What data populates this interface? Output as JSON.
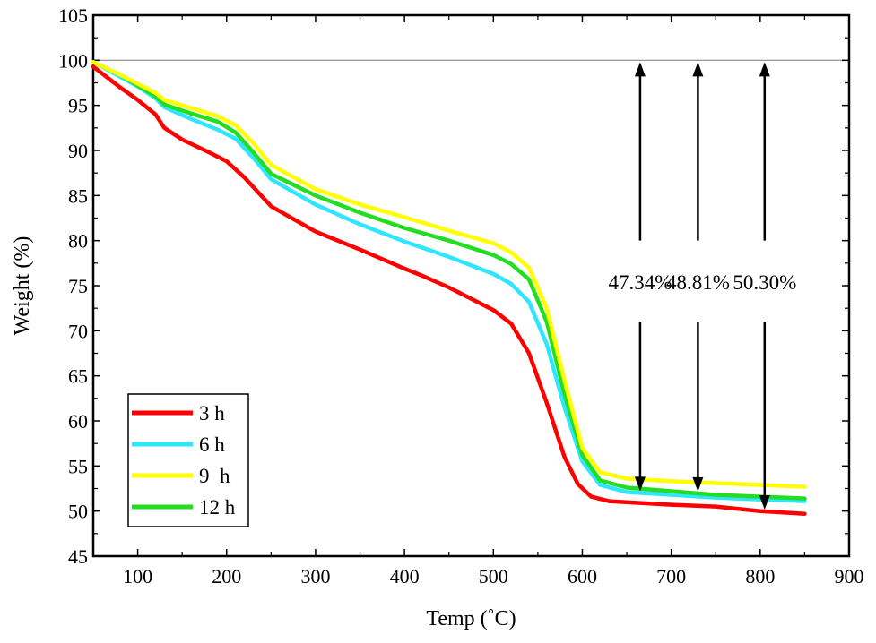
{
  "chart_data": {
    "type": "line",
    "title": "",
    "xlabel": "Temp (˚C)",
    "ylabel": "Weight (%)",
    "xlim": [
      50,
      900
    ],
    "ylim": [
      45,
      105
    ],
    "xticks": [
      100,
      200,
      300,
      400,
      500,
      600,
      700,
      800,
      900
    ],
    "yticks": [
      45,
      50,
      55,
      60,
      65,
      70,
      75,
      80,
      85,
      90,
      95,
      100,
      105
    ],
    "xtick_labels": [
      "100",
      "200",
      "300",
      "400",
      "500",
      "600",
      "700",
      "800",
      "900"
    ],
    "ytick_labels": [
      "45",
      "50",
      "55",
      "60",
      "65",
      "70",
      "75",
      "80",
      "85",
      "90",
      "95",
      "100",
      "105"
    ],
    "reference_line": {
      "y": 100,
      "color": "#888888"
    },
    "legend": {
      "placement": "bottom-left"
    },
    "series": [
      {
        "name": "3 h",
        "color": "#ff0000",
        "x": [
          50,
          80,
          100,
          120,
          130,
          150,
          180,
          200,
          220,
          250,
          300,
          350,
          400,
          420,
          450,
          500,
          520,
          540,
          560,
          580,
          595,
          610,
          630,
          700,
          750,
          800,
          850
        ],
        "y": [
          99.3,
          97,
          95.6,
          94,
          92.5,
          91.2,
          89.8,
          88.8,
          87,
          83.8,
          81,
          79,
          76.9,
          76.1,
          74.8,
          72.3,
          70.8,
          67.5,
          62,
          56,
          53,
          51.6,
          51.1,
          50.7,
          50.5,
          50,
          49.7
        ]
      },
      {
        "name": "6 h",
        "color": "#2ee6ff",
        "x": [
          50,
          80,
          100,
          120,
          130,
          160,
          190,
          210,
          230,
          250,
          300,
          350,
          400,
          450,
          500,
          520,
          540,
          560,
          580,
          600,
          620,
          650,
          700,
          750,
          800,
          850
        ],
        "y": [
          99.8,
          98.2,
          97.1,
          95.8,
          94.8,
          93.5,
          92.3,
          91.3,
          89.2,
          86.8,
          84,
          81.8,
          79.9,
          78.2,
          76.3,
          75.2,
          73.2,
          68.5,
          61.5,
          55.5,
          52.9,
          52.1,
          51.8,
          51.5,
          51.3,
          51.1
        ]
      },
      {
        "name": "9  h",
        "color": "#ffff00",
        "x": [
          50,
          80,
          100,
          120,
          130,
          160,
          190,
          210,
          230,
          250,
          300,
          350,
          400,
          450,
          500,
          520,
          540,
          560,
          580,
          600,
          620,
          650,
          700,
          750,
          800,
          850
        ],
        "y": [
          99.8,
          98.4,
          97.4,
          96.4,
          95.6,
          94.7,
          93.8,
          92.8,
          90.8,
          88.4,
          85.7,
          84,
          82.6,
          81.1,
          79.7,
          78.7,
          77,
          72.5,
          64.5,
          57,
          54.3,
          53.6,
          53.3,
          53.1,
          52.9,
          52.7
        ]
      },
      {
        "name": "12 h",
        "color": "#22dd22",
        "x": [
          50,
          80,
          100,
          120,
          130,
          160,
          190,
          210,
          230,
          250,
          300,
          350,
          400,
          450,
          500,
          520,
          540,
          560,
          580,
          600,
          620,
          650,
          700,
          750,
          800,
          850
        ],
        "y": [
          99.8,
          98.4,
          97.2,
          96,
          95.1,
          94.1,
          93.2,
          92,
          89.8,
          87.4,
          85,
          83.1,
          81.4,
          80,
          78.4,
          77.4,
          75.7,
          71,
          63,
          56.2,
          53.4,
          52.6,
          52.2,
          51.8,
          51.6,
          51.4
        ]
      }
    ],
    "annotations": [
      {
        "text": "47.34%",
        "x": 665
      },
      {
        "text": "48.81%",
        "x": 730
      },
      {
        "text": "50.30%",
        "x": 805
      }
    ]
  }
}
